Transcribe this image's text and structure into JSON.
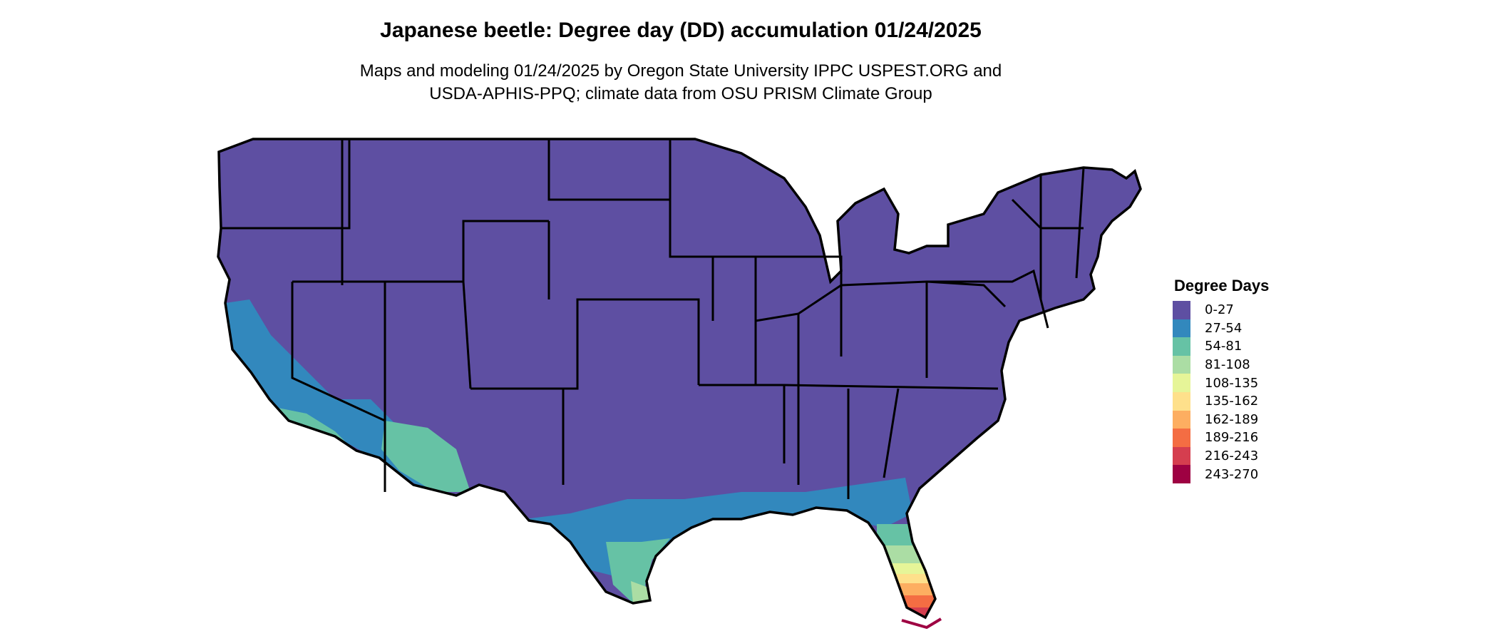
{
  "chart_data": {
    "type": "map",
    "title": "Japanese beetle: Degree day (DD) accumulation 01/24/2025",
    "subtitle": [
      "Maps and modeling 01/24/2025 by Oregon State University IPPC USPEST.ORG and",
      "USDA-APHIS-PPQ; climate data from OSU PRISM Climate Group"
    ],
    "region": "Contiguous United States",
    "legend": {
      "title": "Degree Days",
      "placement": "right",
      "items": [
        {
          "label": "0-27",
          "color": "#5E4FA2"
        },
        {
          "label": "27-54",
          "color": "#3288BD"
        },
        {
          "label": "54-81",
          "color": "#66C2A5"
        },
        {
          "label": "81-108",
          "color": "#ABDDA4"
        },
        {
          "label": "108-135",
          "color": "#E6F598"
        },
        {
          "label": "135-162",
          "color": "#FEE08B"
        },
        {
          "label": "162-189",
          "color": "#FDAE61"
        },
        {
          "label": "189-216",
          "color": "#F46D43"
        },
        {
          "label": "216-243",
          "color": "#D53E4F"
        },
        {
          "label": "243-270",
          "color": "#9E0142"
        }
      ]
    }
  }
}
